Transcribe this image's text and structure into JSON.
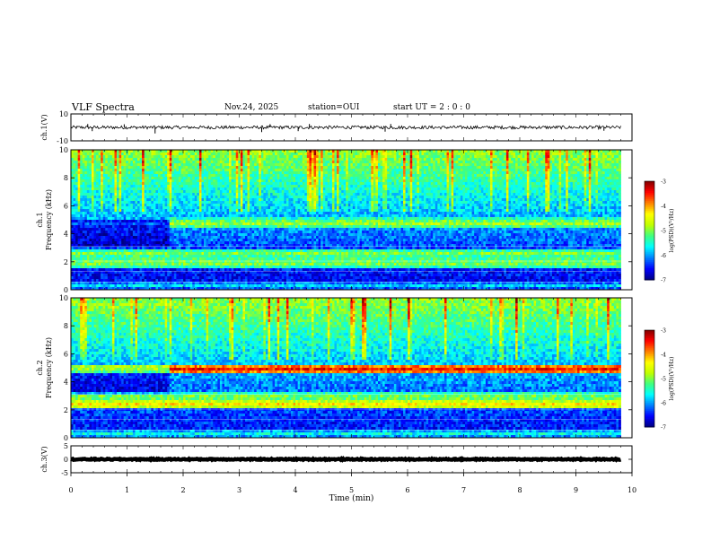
{
  "header": {
    "title": "VLF Spectra",
    "date": "Nov.24, 2025",
    "station": "station=OUI",
    "start": "start  UT =   2  : 0   : 0"
  },
  "colors": {
    "bg": "#ffffff",
    "axis": "#000000",
    "colormap": [
      "#000080",
      "#0000ff",
      "#0080ff",
      "#00ffff",
      "#40ff80",
      "#c0ff00",
      "#ffff00",
      "#ff8000",
      "#ff0000",
      "#800000"
    ]
  },
  "chart_data": [
    {
      "id": "ch1-waveform",
      "type": "line",
      "ylabel": "ch.1(V)",
      "ylim": [
        -10,
        10
      ],
      "yticks": [
        "10",
        "-10"
      ],
      "baseline": 0,
      "noise_amplitude": 1.2,
      "impulses": [
        {
          "t": 0.3,
          "v": 2.5
        },
        {
          "t": 0.38,
          "v": -2.8
        },
        {
          "t": 0.95,
          "v": 2.3
        },
        {
          "t": 1.5,
          "v": -4.5
        },
        {
          "t": 3.4,
          "v": -3.5
        },
        {
          "t": 3.55,
          "v": 2.4
        },
        {
          "t": 4.05,
          "v": -2.8
        },
        {
          "t": 4.25,
          "v": 2.5
        },
        {
          "t": 5.6,
          "v": -3.2
        },
        {
          "t": 5.7,
          "v": 2.5
        },
        {
          "t": 9.5,
          "v": -2.5
        }
      ]
    },
    {
      "id": "ch1-spectrogram",
      "type": "heatmap",
      "panel": "ch.1",
      "ylabel": "Frequency (kHz)",
      "ylim": [
        0,
        10
      ],
      "yticks": [
        "0",
        "2",
        "4",
        "6",
        "8",
        "10"
      ],
      "xlim": [
        0,
        10
      ],
      "colorbar": {
        "label": "log(PSD)(V²/Hz)",
        "range": [
          -7,
          -3
        ],
        "ticks": [
          "-3",
          "-4",
          "-5",
          "-6",
          "-7"
        ]
      },
      "band_frequencies_khz": [
        0.3,
        1.9,
        2.3,
        2.6,
        4.75
      ],
      "band_log_psd": [
        -5.8,
        -4.9,
        -5.1,
        -5.0,
        -4.8
      ],
      "background_log_psd_low": -6.6,
      "background_log_psd_high": -4.9,
      "transition_time_min": 1.75
    },
    {
      "id": "ch2-spectrogram",
      "type": "heatmap",
      "panel": "ch.2",
      "ylabel": "Frequency (kHz)",
      "ylim": [
        0,
        10
      ],
      "yticks": [
        "0",
        "2",
        "4",
        "6",
        "8",
        "10"
      ],
      "xlim": [
        0,
        10
      ],
      "colorbar": {
        "label": "log(PSD)(V²/Hz)",
        "range": [
          -7,
          -3
        ],
        "ticks": [
          "-3",
          "-4",
          "-5",
          "-6",
          "-7"
        ]
      },
      "band_frequencies_khz": [
        0.3,
        2.4,
        2.9,
        4.9
      ],
      "band_log_psd": [
        -5.6,
        -4.3,
        -4.9,
        -3.5
      ],
      "background_log_psd_low": -6.5,
      "background_log_psd_high": -4.9,
      "transition_time_min": 1.75
    },
    {
      "id": "ch3-waveform",
      "type": "line",
      "ylabel": "ch.3(V)",
      "ylim": [
        -5,
        5
      ],
      "yticks": [
        "5",
        "0",
        "-5"
      ],
      "baseline": 0,
      "noise_amplitude": 0.2
    }
  ],
  "xaxis": {
    "label": "Time (min)",
    "range": [
      0,
      10
    ],
    "ticks": [
      "0",
      "1",
      "2",
      "3",
      "4",
      "5",
      "6",
      "7",
      "8",
      "9",
      "10"
    ],
    "data_end_min": 9.8
  }
}
